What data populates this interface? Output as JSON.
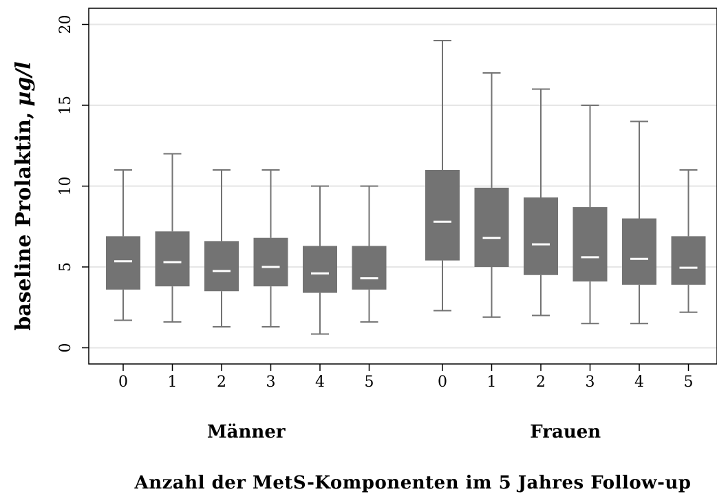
{
  "chart_data": {
    "type": "boxplot",
    "ylabel": "baseline Prolaktin,",
    "ylabel_unit": "µg/l",
    "xlabel": "Anzahl der MetS-Komponenten im 5 Jahres Follow-up",
    "ylim": [
      -1,
      21
    ],
    "yticks": [
      0,
      5,
      10,
      15,
      20
    ],
    "grid": true,
    "colors": {
      "box": "#737373",
      "median": "#ffffff",
      "whisker": "#737373",
      "grid": "#e6e6e6",
      "axis": "#000000"
    },
    "groups": [
      {
        "name": "Männer",
        "boxes": [
          {
            "label": "0",
            "whisker_low": 1.7,
            "q1": 3.6,
            "median": 5.35,
            "q3": 6.9,
            "whisker_high": 11
          },
          {
            "label": "1",
            "whisker_low": 1.6,
            "q1": 3.8,
            "median": 5.3,
            "q3": 7.2,
            "whisker_high": 12
          },
          {
            "label": "2",
            "whisker_low": 1.3,
            "q1": 3.5,
            "median": 4.75,
            "q3": 6.6,
            "whisker_high": 11
          },
          {
            "label": "3",
            "whisker_low": 1.3,
            "q1": 3.8,
            "median": 5.0,
            "q3": 6.8,
            "whisker_high": 11
          },
          {
            "label": "4",
            "whisker_low": 0.85,
            "q1": 3.4,
            "median": 4.6,
            "q3": 6.3,
            "whisker_high": 10
          },
          {
            "label": "5",
            "whisker_low": 1.6,
            "q1": 3.6,
            "median": 4.3,
            "q3": 6.3,
            "whisker_high": 10
          }
        ]
      },
      {
        "name": "Frauen",
        "boxes": [
          {
            "label": "0",
            "whisker_low": 2.3,
            "q1": 5.4,
            "median": 7.8,
            "q3": 11.0,
            "whisker_high": 19
          },
          {
            "label": "1",
            "whisker_low": 1.9,
            "q1": 5.0,
            "median": 6.8,
            "q3": 9.9,
            "whisker_high": 17
          },
          {
            "label": "2",
            "whisker_low": 2.0,
            "q1": 4.5,
            "median": 6.4,
            "q3": 9.3,
            "whisker_high": 16
          },
          {
            "label": "3",
            "whisker_low": 1.5,
            "q1": 4.1,
            "median": 5.6,
            "q3": 8.7,
            "whisker_high": 15
          },
          {
            "label": "4",
            "whisker_low": 1.5,
            "q1": 3.9,
            "median": 5.5,
            "q3": 8.0,
            "whisker_high": 14
          },
          {
            "label": "5",
            "whisker_low": 2.2,
            "q1": 3.9,
            "median": 4.95,
            "q3": 6.9,
            "whisker_high": 11
          }
        ]
      }
    ]
  }
}
